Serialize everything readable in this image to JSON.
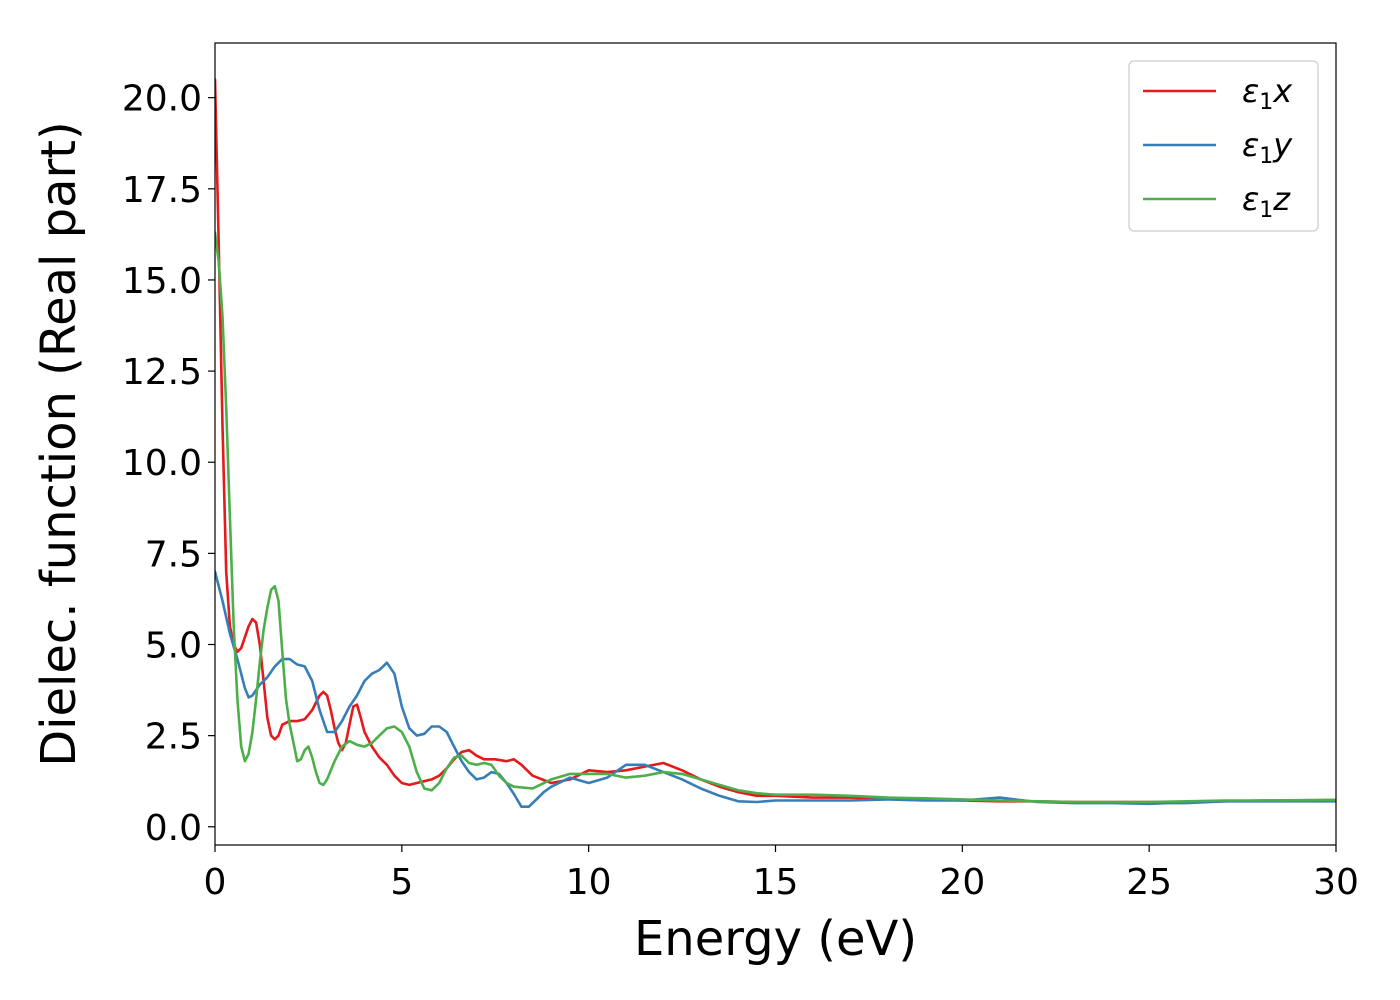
{
  "chart_data": {
    "type": "line",
    "xlabel": "Energy (eV)",
    "ylabel": "Dielec. function (Real part)",
    "xlim": [
      0,
      30
    ],
    "ylim": [
      -0.5,
      21.5
    ],
    "xticks": [
      0,
      5,
      10,
      15,
      20,
      25,
      30
    ],
    "xtick_labels": [
      "0",
      "5",
      "10",
      "15",
      "20",
      "25",
      "30"
    ],
    "yticks": [
      0,
      2.5,
      5,
      7.5,
      10,
      12.5,
      15,
      17.5,
      20
    ],
    "ytick_labels": [
      "0.0",
      "2.5",
      "5.0",
      "7.5",
      "10.0",
      "12.5",
      "15.0",
      "17.5",
      "20.0"
    ],
    "grid": false,
    "legend_position": "top-right",
    "series": [
      {
        "name": "ε₁x",
        "name_base": "ε",
        "name_sub": "1",
        "name_var": "x",
        "color": "#e41a1c",
        "x": [
          0.0,
          0.1,
          0.2,
          0.3,
          0.4,
          0.5,
          0.6,
          0.7,
          0.8,
          0.9,
          1.0,
          1.1,
          1.2,
          1.3,
          1.4,
          1.5,
          1.6,
          1.7,
          1.8,
          2.0,
          2.2,
          2.4,
          2.6,
          2.8,
          2.9,
          3.0,
          3.1,
          3.2,
          3.3,
          3.4,
          3.5,
          3.6,
          3.7,
          3.8,
          3.9,
          4.0,
          4.2,
          4.4,
          4.6,
          4.8,
          5.0,
          5.2,
          5.4,
          5.6,
          5.8,
          6.0,
          6.2,
          6.4,
          6.6,
          6.8,
          7.0,
          7.2,
          7.5,
          7.8,
          8.0,
          8.2,
          8.5,
          9.0,
          9.5,
          10.0,
          10.5,
          11.0,
          11.5,
          12.0,
          12.5,
          13.0,
          13.5,
          14.0,
          14.5,
          15.0,
          16.0,
          17.0,
          18.0,
          19.0,
          20.0,
          21.0,
          22.0,
          23.0,
          24.0,
          25.0,
          26.0,
          27.0,
          28.0,
          29.0,
          30.0
        ],
        "y": [
          20.5,
          16.0,
          11.0,
          7.0,
          5.5,
          5.0,
          4.8,
          4.9,
          5.2,
          5.5,
          5.7,
          5.6,
          5.0,
          4.0,
          3.0,
          2.5,
          2.4,
          2.5,
          2.8,
          2.9,
          2.9,
          2.95,
          3.2,
          3.6,
          3.7,
          3.6,
          3.2,
          2.7,
          2.3,
          2.1,
          2.3,
          2.8,
          3.3,
          3.35,
          3.0,
          2.6,
          2.2,
          1.9,
          1.7,
          1.4,
          1.2,
          1.15,
          1.2,
          1.25,
          1.3,
          1.4,
          1.6,
          1.85,
          2.05,
          2.1,
          1.95,
          1.85,
          1.85,
          1.8,
          1.85,
          1.7,
          1.4,
          1.2,
          1.3,
          1.55,
          1.5,
          1.55,
          1.65,
          1.75,
          1.55,
          1.3,
          1.1,
          0.95,
          0.85,
          0.85,
          0.8,
          0.8,
          0.78,
          0.75,
          0.72,
          0.7,
          0.7,
          0.68,
          0.68,
          0.68,
          0.68,
          0.7,
          0.72,
          0.72,
          0.73
        ]
      },
      {
        "name": "ε₁y",
        "name_base": "ε",
        "name_sub": "1",
        "name_var": "y",
        "color": "#377eb8",
        "x": [
          0.0,
          0.2,
          0.4,
          0.6,
          0.8,
          0.9,
          1.0,
          1.2,
          1.4,
          1.6,
          1.8,
          2.0,
          2.2,
          2.4,
          2.6,
          2.8,
          3.0,
          3.2,
          3.4,
          3.6,
          3.8,
          4.0,
          4.2,
          4.4,
          4.6,
          4.8,
          5.0,
          5.2,
          5.4,
          5.6,
          5.8,
          6.0,
          6.2,
          6.4,
          6.6,
          6.8,
          7.0,
          7.2,
          7.4,
          7.6,
          7.8,
          8.0,
          8.2,
          8.4,
          8.6,
          8.8,
          9.0,
          9.5,
          10.0,
          10.5,
          11.0,
          11.5,
          12.0,
          12.5,
          13.0,
          13.5,
          14.0,
          14.5,
          15.0,
          16.0,
          17.0,
          18.0,
          19.0,
          20.0,
          21.0,
          22.0,
          23.0,
          24.0,
          25.0,
          25.5,
          26.0,
          27.0,
          28.0,
          29.0,
          30.0
        ],
        "y": [
          7.0,
          6.2,
          5.3,
          4.6,
          3.8,
          3.55,
          3.6,
          3.9,
          4.1,
          4.4,
          4.6,
          4.6,
          4.45,
          4.4,
          4.0,
          3.2,
          2.6,
          2.6,
          2.9,
          3.3,
          3.6,
          4.0,
          4.2,
          4.3,
          4.5,
          4.2,
          3.3,
          2.7,
          2.5,
          2.55,
          2.75,
          2.75,
          2.6,
          2.2,
          1.8,
          1.5,
          1.3,
          1.35,
          1.5,
          1.45,
          1.2,
          0.9,
          0.55,
          0.55,
          0.75,
          0.95,
          1.1,
          1.35,
          1.2,
          1.35,
          1.7,
          1.7,
          1.5,
          1.3,
          1.05,
          0.85,
          0.7,
          0.68,
          0.72,
          0.72,
          0.72,
          0.75,
          0.72,
          0.72,
          0.8,
          0.68,
          0.65,
          0.65,
          0.63,
          0.65,
          0.65,
          0.7,
          0.7,
          0.7,
          0.7
        ]
      },
      {
        "name": "ε₁z",
        "name_base": "ε",
        "name_sub": "1",
        "name_var": "z",
        "color": "#4daf4a",
        "x": [
          0.0,
          0.1,
          0.2,
          0.3,
          0.4,
          0.5,
          0.6,
          0.7,
          0.8,
          0.9,
          1.0,
          1.1,
          1.2,
          1.3,
          1.4,
          1.5,
          1.6,
          1.7,
          1.8,
          1.9,
          2.0,
          2.1,
          2.2,
          2.3,
          2.4,
          2.5,
          2.6,
          2.7,
          2.8,
          2.9,
          3.0,
          3.2,
          3.4,
          3.6,
          3.8,
          4.0,
          4.2,
          4.4,
          4.6,
          4.8,
          5.0,
          5.2,
          5.4,
          5.6,
          5.8,
          6.0,
          6.2,
          6.4,
          6.6,
          6.8,
          7.0,
          7.2,
          7.4,
          7.6,
          7.8,
          8.0,
          8.5,
          9.0,
          9.5,
          10.0,
          10.5,
          11.0,
          11.5,
          12.0,
          12.5,
          13.0,
          13.5,
          14.0,
          14.5,
          15.0,
          16.0,
          17.0,
          18.0,
          19.0,
          20.0,
          21.0,
          22.0,
          23.0,
          24.0,
          25.0,
          26.0,
          27.0,
          28.0,
          29.0,
          30.0
        ],
        "y": [
          16.3,
          15.5,
          14.0,
          11.5,
          8.5,
          5.5,
          3.5,
          2.2,
          1.8,
          2.0,
          2.6,
          3.5,
          4.5,
          5.4,
          6.0,
          6.5,
          6.6,
          6.2,
          4.8,
          3.5,
          2.8,
          2.3,
          1.8,
          1.85,
          2.1,
          2.2,
          1.9,
          1.5,
          1.2,
          1.15,
          1.3,
          1.8,
          2.2,
          2.35,
          2.25,
          2.2,
          2.3,
          2.5,
          2.7,
          2.75,
          2.6,
          2.2,
          1.5,
          1.05,
          1.0,
          1.2,
          1.6,
          1.9,
          1.95,
          1.75,
          1.7,
          1.75,
          1.7,
          1.4,
          1.2,
          1.1,
          1.05,
          1.3,
          1.45,
          1.45,
          1.45,
          1.35,
          1.4,
          1.5,
          1.45,
          1.3,
          1.15,
          1.0,
          0.92,
          0.88,
          0.88,
          0.85,
          0.8,
          0.78,
          0.75,
          0.72,
          0.7,
          0.68,
          0.68,
          0.68,
          0.7,
          0.72,
          0.72,
          0.73,
          0.74
        ]
      }
    ]
  }
}
